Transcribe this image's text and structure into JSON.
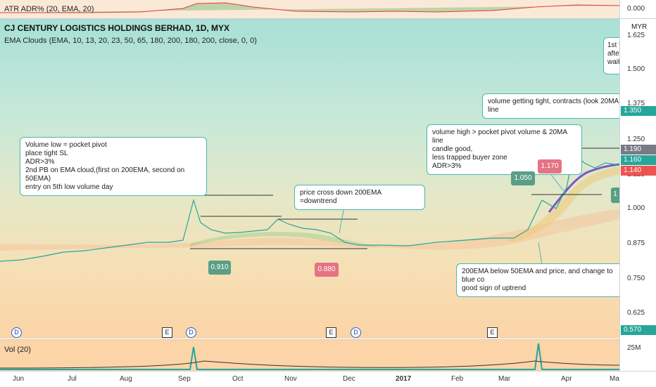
{
  "atr": {
    "label": "ATR ADR% (20, EMA, 20)",
    "value": "0.000"
  },
  "header": {
    "title": "CJ CENTURY LOGISTICS HOLDINGS BERHAD, 1D, MYX",
    "indicator": "EMA Clouds (EMA, 10, 13, 20, 23, 50, 65, 180, 200, 180, 200, close, 0, 0)",
    "currency": "MYR"
  },
  "y_axis": {
    "ticks": [
      "1.625",
      "1.500",
      "1.375",
      "1.250",
      "1.125",
      "1.000",
      "0.875",
      "0.750",
      "0.625"
    ],
    "badges": [
      {
        "text": "1.350",
        "color": "#26a69a"
      },
      {
        "text": "1.190",
        "color": "#787b86"
      },
      {
        "text": "1.160",
        "color": "#26a69a"
      },
      {
        "text": "1.140",
        "color": "#ef5350"
      },
      {
        "text": "0.570",
        "color": "#26a69a"
      }
    ],
    "vol_tick": "25M"
  },
  "x_axis": {
    "labels": [
      "Jun",
      "Jul",
      "Aug",
      "Sep",
      "Oct",
      "Nov",
      "Dec",
      "2017",
      "Feb",
      "Mar",
      "Apr",
      "Ma"
    ]
  },
  "volume": {
    "label": "Vol (20)"
  },
  "annotations": {
    "pocket_pivot": [
      "Volume low = pocket pivot",
      "place tight SL",
      "ADR>3%",
      "2nd PB on EMA cloud,(first on 200EMA, second on 50EMA)",
      "entry on 5th low volume day"
    ],
    "downtrend": "price cross down 200EMA =downtrend",
    "tight": "volume getting tight, contracts (look 20MA line",
    "pocket_volume": [
      "volume high > pocket pivot volume & 20MA line",
      "candle good,",
      "less trapped buyer zone",
      "ADR>3%"
    ],
    "uptrend": [
      "200EMA below 50EMA and price, and change to blue co",
      "good sign of uptrend"
    ],
    "first": [
      "1st t",
      "after",
      "wait"
    ]
  },
  "price_tags": [
    {
      "text": "0.910",
      "color": "#5a9e86"
    },
    {
      "text": "0.880",
      "color": "#e57383"
    },
    {
      "text": "1.050",
      "color": "#5a9e86"
    },
    {
      "text": "1.170",
      "color": "#e57383"
    },
    {
      "text": "1",
      "color": "#5a9e86"
    }
  ],
  "events": [
    "D",
    "E",
    "D",
    "E",
    "D",
    "E"
  ]
}
